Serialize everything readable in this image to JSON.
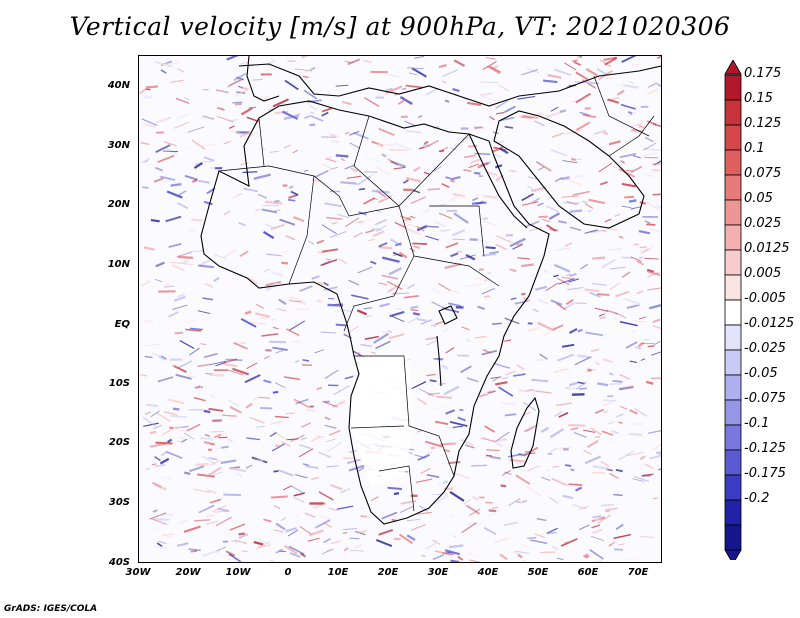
{
  "title": "Vertical velocity [m/s] at 900hPa, VT: 2021020306",
  "credit": "GrADS: IGES/COLA",
  "map": {
    "lat_labels": [
      "40N",
      "30N",
      "20N",
      "10N",
      "EQ",
      "10S",
      "20S",
      "30S",
      "40S"
    ],
    "lon_labels": [
      "30W",
      "20W",
      "10W",
      "0",
      "10E",
      "20E",
      "30E",
      "40E",
      "50E",
      "60E",
      "70E"
    ],
    "lon_range": [
      -30,
      75
    ],
    "lat_range": [
      -40,
      45
    ]
  },
  "colorbar": {
    "labels": [
      "0.175",
      "0.15",
      "0.125",
      "0.1",
      "0.075",
      "0.05",
      "0.025",
      "0.0125",
      "0.005",
      "-0.005",
      "-0.0125",
      "-0.025",
      "-0.05",
      "-0.075",
      "-0.1",
      "-0.125",
      "-0.175",
      "-0.2"
    ],
    "colors": [
      "#b2182b",
      "#c8323a",
      "#d6474c",
      "#e06060",
      "#e87a7a",
      "#ef9595",
      "#f4b0b0",
      "#f8cccc",
      "#fbe4e4",
      "#ffffff",
      "#e2e2fb",
      "#cacaf6",
      "#b0b0f0",
      "#9696e8",
      "#7878de",
      "#5a5ad2",
      "#3c3cc2",
      "#2222a8",
      "#16168c"
    ]
  }
}
